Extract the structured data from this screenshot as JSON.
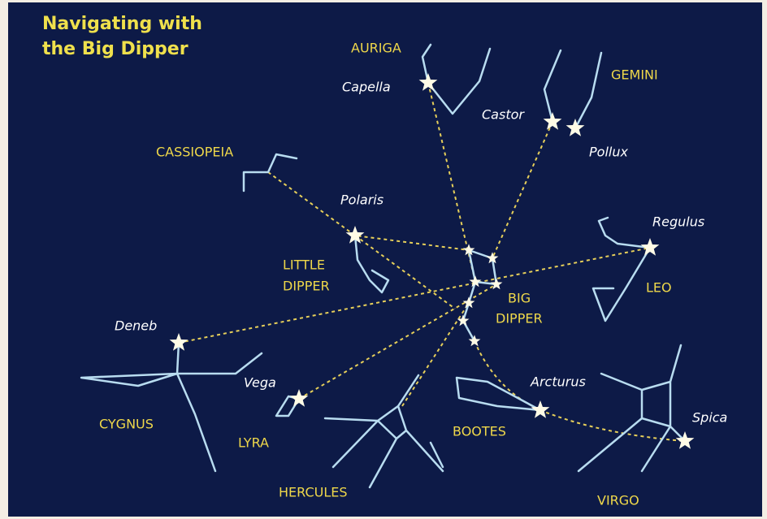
{
  "title": [
    "Navigating with",
    "the Big Dipper"
  ],
  "constellations": {
    "auriga": "AURIGA",
    "gemini": "GEMINI",
    "cassiopeia": "CASSIOPEIA",
    "little_dipper": [
      "LITTLE",
      "DIPPER"
    ],
    "big_dipper": [
      "BIG",
      "DIPPER"
    ],
    "leo": "LEO",
    "cygnus": "CYGNUS",
    "lyra": "LYRA",
    "hercules": "HERCULES",
    "bootes": "BOOTES",
    "virgo": "VIRGO"
  },
  "stars": {
    "capella": "Capella",
    "castor": "Castor",
    "pollux": "Pollux",
    "polaris": "Polaris",
    "regulus": "Regulus",
    "deneb": "Deneb",
    "vega": "Vega",
    "arcturus": "Arcturus",
    "spica": "Spica"
  }
}
